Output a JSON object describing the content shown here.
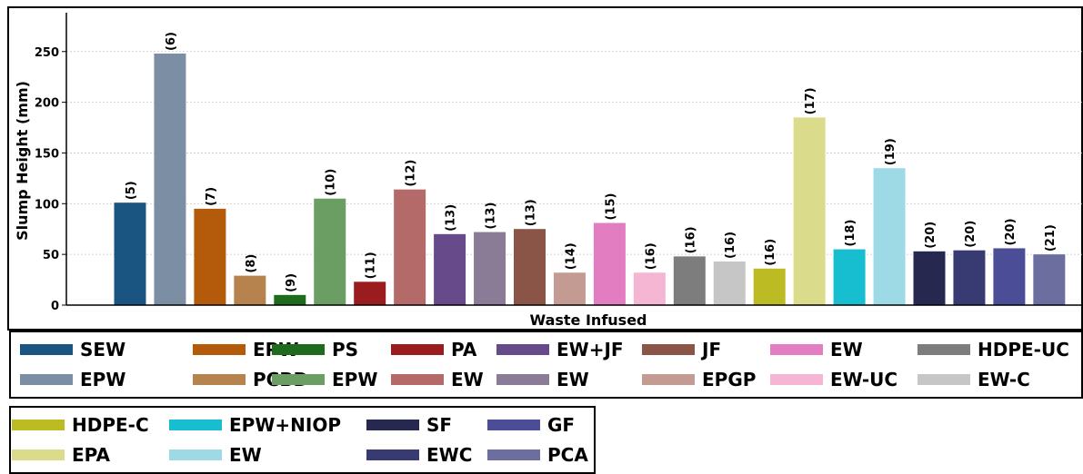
{
  "chart_data": {
    "type": "bar",
    "title": "",
    "xlabel": "Waste Infused",
    "ylabel": "Slump Height (mm)",
    "ylim": [
      0,
      285
    ],
    "yticks": [
      0,
      50,
      100,
      150,
      200,
      250
    ],
    "grid": "y-dashed",
    "categories": [
      "SEW",
      "EPW",
      "EPW",
      "PCBD",
      "PS",
      "EPW",
      "PA",
      "EW",
      "EW+JF",
      "EW",
      "JF",
      "EPGP",
      "EW",
      "EW-UC",
      "HDPE-UC",
      "EW-C",
      "HDPE-C",
      "EPA",
      "EPW+NIOP",
      "EW",
      "SF",
      "EWC",
      "GF",
      "PCA"
    ],
    "values": [
      101,
      248,
      95,
      29,
      10,
      105,
      23,
      114,
      70,
      72,
      75,
      32,
      81,
      32,
      48,
      43,
      36,
      185,
      55,
      135,
      53,
      54,
      56,
      50
    ],
    "data_labels": [
      "(5)",
      "(6)",
      "(7)",
      "(8)",
      "(9)",
      "(10)",
      "(11)",
      "(12)",
      "(13)",
      "(13)",
      "(13)",
      "(14)",
      "(15)",
      "(16)",
      "(16)",
      "(16)",
      "(16)",
      "(17)",
      "(18)",
      "(19)",
      "(20)",
      "(20)",
      "(20)",
      "(21)"
    ],
    "colors": [
      "#1a5480",
      "#7c8ea4",
      "#b35a0b",
      "#b6834f",
      "#1e6b1e",
      "#6a9e62",
      "#9a1c1e",
      "#b56a6a",
      "#674a8a",
      "#8a7b96",
      "#8a5446",
      "#c39b92",
      "#e27dc2",
      "#f5b6d3",
      "#7d7d7d",
      "#c6c6c6",
      "#bcbb24",
      "#dbdb8c",
      "#17becf",
      "#9edae6",
      "#272850",
      "#373b71",
      "#4b4e97",
      "#6b6e9f"
    ]
  },
  "legend_main": {
    "items": [
      {
        "label": "SEW",
        "color": "#1a5480"
      },
      {
        "label": "EPW",
        "color": "#b35a0b"
      },
      {
        "label": "PS",
        "color": "#1e6b1e"
      },
      {
        "label": "PA",
        "color": "#9a1c1e"
      },
      {
        "label": "EW+JF",
        "color": "#674a8a"
      },
      {
        "label": "JF",
        "color": "#8a5446"
      },
      {
        "label": "EW",
        "color": "#e27dc2"
      },
      {
        "label": "HDPE-UC",
        "color": "#7d7d7d"
      },
      {
        "label": "EPW",
        "color": "#7c8ea4"
      },
      {
        "label": "PCBD",
        "color": "#b6834f"
      },
      {
        "label": "EPW",
        "color": "#6a9e62"
      },
      {
        "label": "EW",
        "color": "#b56a6a"
      },
      {
        "label": "EW",
        "color": "#8a7b96"
      },
      {
        "label": "EPGP",
        "color": "#c39b92"
      },
      {
        "label": "EW-UC",
        "color": "#f5b6d3"
      },
      {
        "label": "EW-C",
        "color": "#c6c6c6"
      }
    ]
  },
  "legend_second": {
    "items": [
      {
        "label": "HDPE-C",
        "color": "#bcbb24"
      },
      {
        "label": "EPW+NIOP",
        "color": "#17becf"
      },
      {
        "label": "SF",
        "color": "#272850"
      },
      {
        "label": "GF",
        "color": "#4b4e97"
      },
      {
        "label": "EPA",
        "color": "#dbdb8c"
      },
      {
        "label": "EW",
        "color": "#9edae6"
      },
      {
        "label": "EWC",
        "color": "#373b71"
      },
      {
        "label": "PCA",
        "color": "#6b6e9f"
      }
    ]
  }
}
